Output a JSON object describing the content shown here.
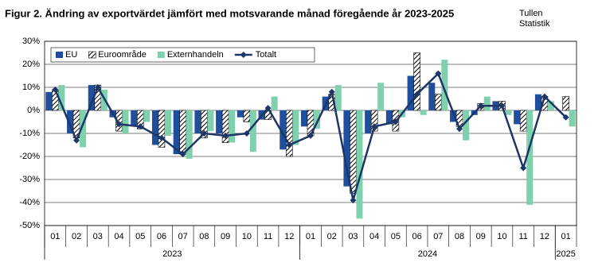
{
  "chart_data": {
    "type": "bar",
    "title": "Figur 2. Ändring av exportvärdet jämfört med motsvarande månad föregående år 2023-2025",
    "source": [
      "Tullen",
      "Statistik"
    ],
    "categories": [
      "01",
      "02",
      "03",
      "04",
      "05",
      "06",
      "07",
      "08",
      "09",
      "10",
      "11",
      "12",
      "01",
      "02",
      "03",
      "04",
      "05",
      "06",
      "07",
      "08",
      "09",
      "10",
      "11",
      "12",
      "01"
    ],
    "groups": [
      {
        "label": "2023",
        "size": 12
      },
      {
        "label": "2024",
        "size": 12
      },
      {
        "label": "2025",
        "size": 1
      }
    ],
    "series": [
      {
        "name": "EU",
        "type": "bar",
        "color": "#1f4e9c",
        "values": [
          8,
          -10,
          11,
          -3,
          -7,
          -15,
          -19,
          -10,
          -10,
          -3,
          -4,
          -17,
          -7,
          6,
          -33,
          -10,
          -6,
          15,
          12,
          -5,
          -2,
          4,
          -6,
          7,
          0
        ]
      },
      {
        "name": "Euroområde",
        "type": "bar",
        "color": "hatch",
        "values": [
          9,
          -12,
          11,
          -9,
          -8,
          -16,
          -19,
          -12,
          -14,
          -5,
          -4,
          -20,
          -11,
          7,
          -36,
          -9,
          -9,
          25,
          7,
          -7,
          3,
          4,
          -9,
          6,
          6
        ]
      },
      {
        "name": "Externhandeln",
        "type": "bar",
        "color": "#7fd1ae",
        "values": [
          11,
          -16,
          9,
          -10,
          -5,
          -11,
          -21,
          -9,
          -14,
          -18,
          6,
          -15,
          -8,
          11,
          -47,
          12,
          -3,
          -2,
          22,
          -13,
          6,
          -2,
          -41,
          4,
          -7
        ]
      },
      {
        "name": "Totalt",
        "type": "line",
        "color": "#1c3668",
        "values": [
          9,
          -13,
          10,
          -6,
          -7,
          -12,
          -19,
          -10,
          -11,
          -10,
          1,
          -15,
          -11,
          8,
          -39,
          -7,
          -5,
          7,
          16,
          -8,
          2,
          2,
          -25,
          6,
          -3
        ]
      }
    ],
    "ylim": [
      -50,
      30
    ],
    "yticks": [
      {
        "value": -50,
        "label": "-50%"
      },
      {
        "value": -40,
        "label": "-40%"
      },
      {
        "value": -30,
        "label": "-30%"
      },
      {
        "value": -20,
        "label": "-20%"
      },
      {
        "value": -10,
        "label": "-10%"
      },
      {
        "value": 0,
        "label": "0%"
      },
      {
        "value": 10,
        "label": "10%"
      },
      {
        "value": 20,
        "label": "20%"
      },
      {
        "value": 30,
        "label": "30%"
      }
    ],
    "grid": true
  }
}
